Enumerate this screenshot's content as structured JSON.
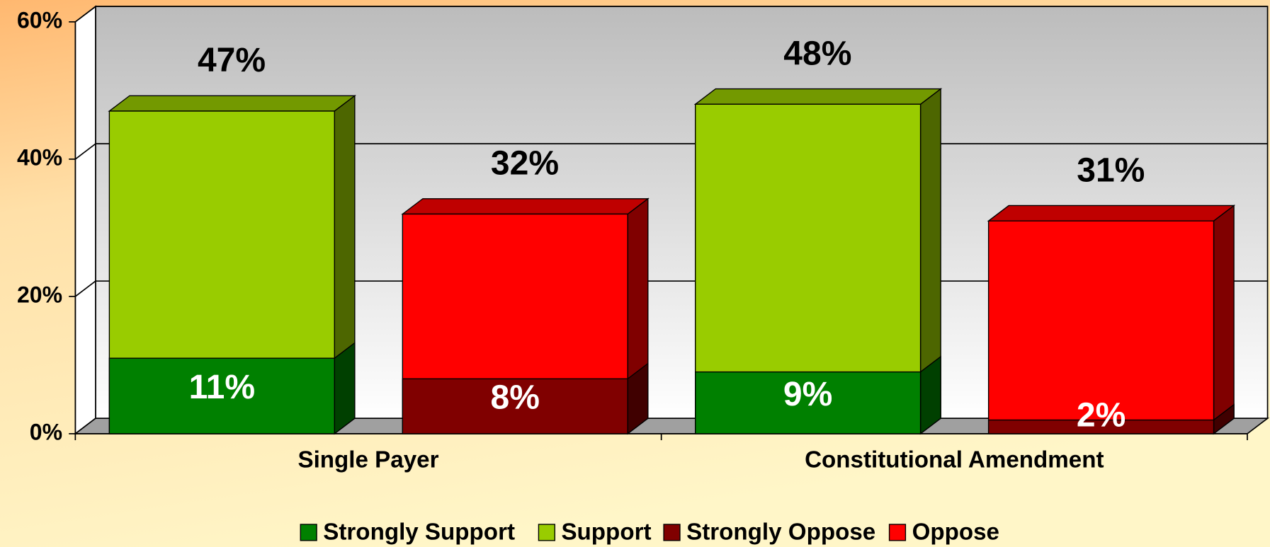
{
  "chart_data": {
    "type": "bar",
    "overlap": true,
    "categories": [
      "Single Payer",
      "Constitutional Amendment"
    ],
    "series": [
      {
        "name": "Strongly Support",
        "color": "#008000",
        "values": [
          11,
          9
        ],
        "value_labels": [
          "11%",
          "9%"
        ]
      },
      {
        "name": "Support",
        "color": "#99cc00",
        "values": [
          47,
          48
        ],
        "value_labels": [
          "47%",
          "48%"
        ]
      },
      {
        "name": "Strongly Oppose",
        "color": "#800000",
        "values": [
          8,
          2
        ],
        "value_labels": [
          "8%",
          "2%"
        ]
      },
      {
        "name": "Oppose",
        "color": "#ff0000",
        "values": [
          32,
          31
        ],
        "value_labels": [
          "32%",
          "31%"
        ]
      }
    ],
    "ylim": [
      0,
      60
    ],
    "yticks": [
      {
        "value": 0,
        "label": "0%"
      },
      {
        "value": 20,
        "label": "20%"
      },
      {
        "value": 40,
        "label": "40%"
      },
      {
        "value": 60,
        "label": "60%"
      }
    ],
    "grid": true,
    "legend": "bottom"
  }
}
